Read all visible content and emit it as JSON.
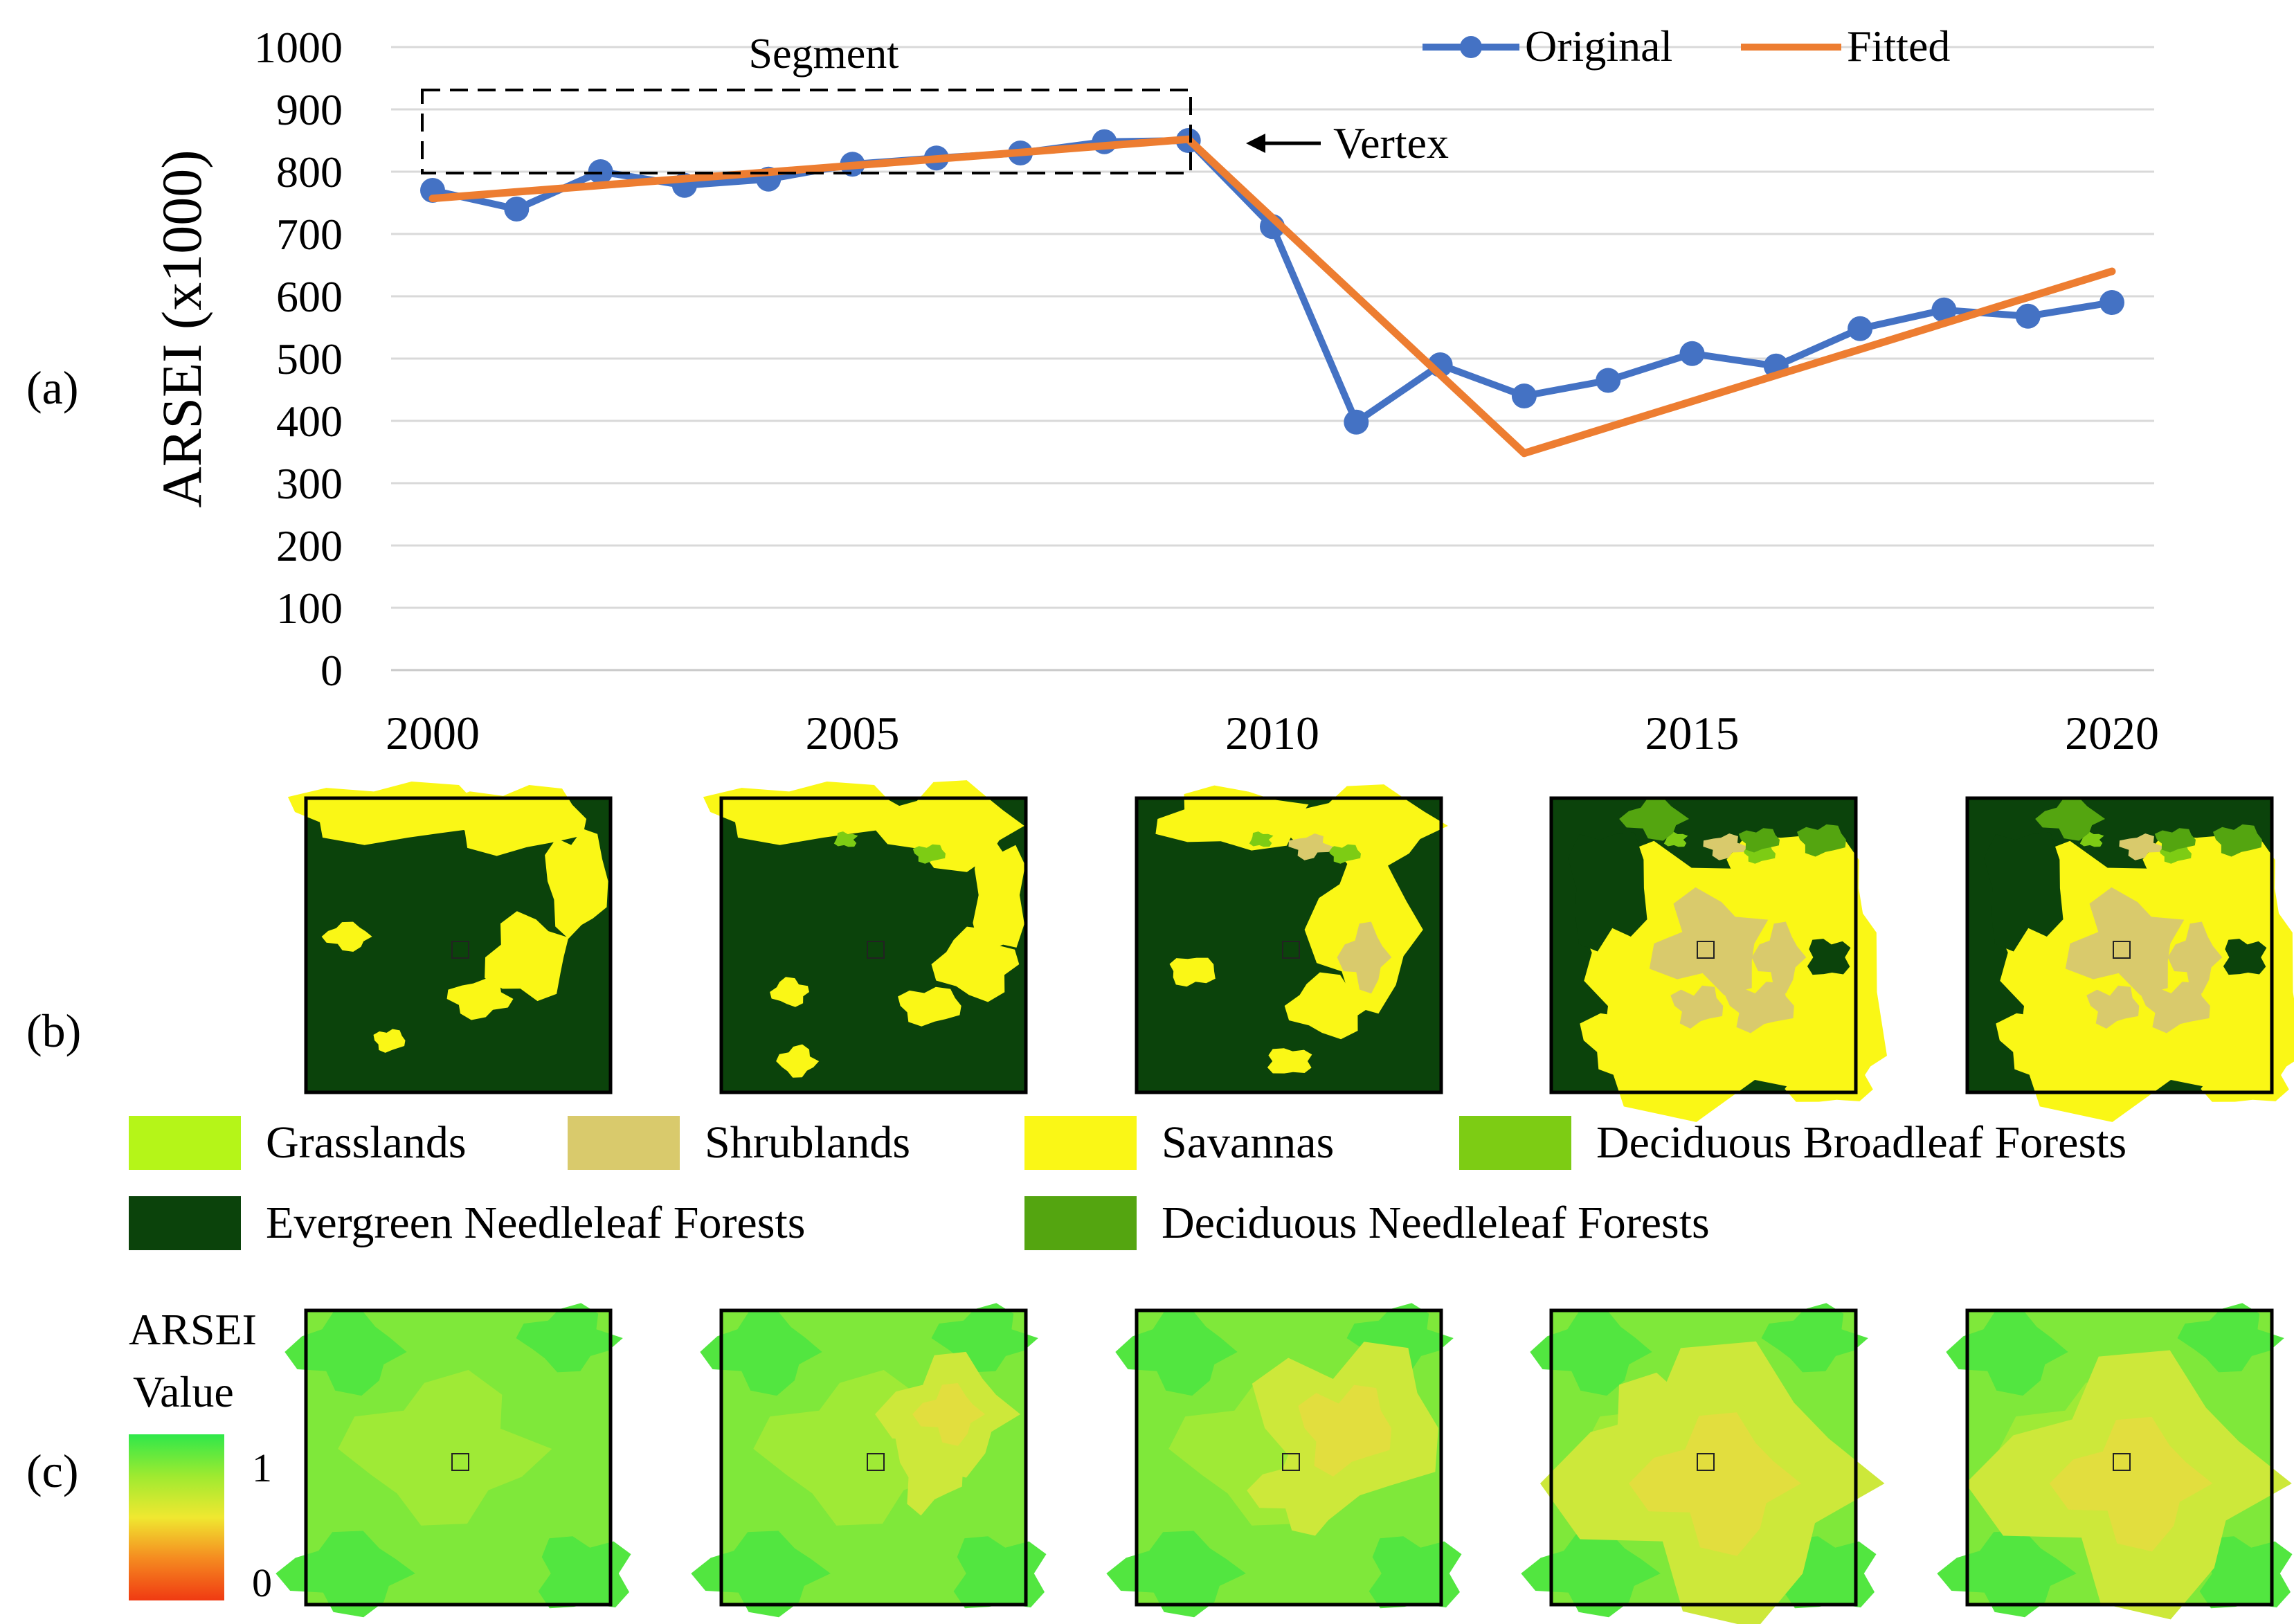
{
  "panel_labels": {
    "a": "(a)",
    "b": "(b)",
    "c": "(c)"
  },
  "chart_data": {
    "type": "line",
    "ylabel": "ARSEI (x1000)",
    "xlabel": "",
    "ylim": [
      0,
      1000
    ],
    "yticks": [
      0,
      100,
      200,
      300,
      400,
      500,
      600,
      700,
      800,
      900,
      1000
    ],
    "xlim": [
      2000,
      2020
    ],
    "xticks": [
      2000,
      2005,
      2010,
      2015,
      2020
    ],
    "grid": true,
    "legend_position": "top-right",
    "colors": {
      "original": "#4472C4",
      "fitted": "#ED7D31"
    },
    "series": [
      {
        "name": "Original",
        "x": [
          2000,
          2001,
          2002,
          2003,
          2004,
          2005,
          2006,
          2007,
          2008,
          2009,
          2010,
          2011,
          2012,
          2013,
          2014,
          2015,
          2016,
          2017,
          2018,
          2019,
          2020
        ],
        "values": [
          770,
          740,
          800,
          778,
          788,
          812,
          822,
          830,
          848,
          850,
          712,
          398,
          490,
          440,
          465,
          508,
          488,
          548,
          578,
          568,
          590
        ]
      },
      {
        "name": "Fitted",
        "x": [
          2000,
          2009,
          2013,
          2020
        ],
        "values": [
          757,
          852,
          348,
          640
        ]
      }
    ],
    "annotations": {
      "segment": "Segment",
      "vertex": "Vertex"
    }
  },
  "land_cover": {
    "years": [
      2000,
      2005,
      2010,
      2015,
      2020
    ],
    "legend": [
      {
        "label": "Grasslands",
        "color": "#B5F518"
      },
      {
        "label": "Shrublands",
        "color": "#D9CA6C"
      },
      {
        "label": "Savannas",
        "color": "#FAF716"
      },
      {
        "label": "Deciduous Broadleaf Forests",
        "color": "#7DCC14"
      },
      {
        "label": "Evergreen Needleleaf Forests",
        "color": "#0B430B"
      },
      {
        "label": "Deciduous Needleleaf Forests",
        "color": "#54A510"
      }
    ]
  },
  "arsei_maps": {
    "legend_title_line1": "ARSEI",
    "legend_title_line2": "Value",
    "max_label": "1",
    "min_label": "0",
    "gradient": [
      "#2EE84A",
      "#9EEA30",
      "#F0E830",
      "#F58A20",
      "#F03A12"
    ]
  }
}
